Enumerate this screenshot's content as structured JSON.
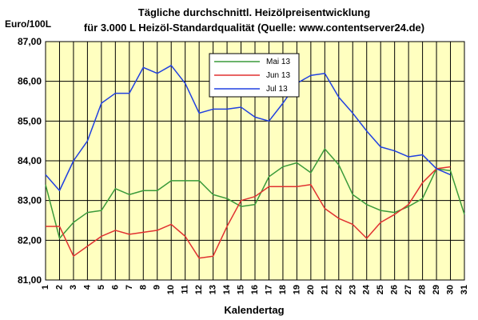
{
  "chart_data": {
    "type": "line",
    "title": "Tägliche durchschnittl. Heizölpreisentwicklung",
    "subtitle": "für 3.000 L Heizöl-Standardqualität (Quelle: www.contentserver24.de)",
    "ylabel": "Euro/100L",
    "xlabel": "Kalendertag",
    "ylim": [
      81,
      87
    ],
    "yticks": [
      "81,00",
      "82,00",
      "83,00",
      "84,00",
      "85,00",
      "86,00",
      "87,00"
    ],
    "x": [
      1,
      2,
      3,
      4,
      5,
      6,
      7,
      8,
      9,
      10,
      11,
      12,
      13,
      14,
      15,
      16,
      17,
      18,
      19,
      20,
      21,
      22,
      23,
      24,
      25,
      26,
      27,
      28,
      29,
      30,
      31
    ],
    "grid": true,
    "legend_position": "top-center",
    "plot_background": "#ffffc0",
    "series": [
      {
        "name": "Mai 13",
        "color": "#3a9a3a",
        "values": [
          83.4,
          82.05,
          82.45,
          82.7,
          82.75,
          83.3,
          83.15,
          83.25,
          83.25,
          83.5,
          83.5,
          83.5,
          83.15,
          83.05,
          82.85,
          82.9,
          83.6,
          83.85,
          83.95,
          83.7,
          84.3,
          83.9,
          83.15,
          82.9,
          82.75,
          82.7,
          82.85,
          83.05,
          83.8,
          83.75,
          82.65
        ]
      },
      {
        "name": "Jun 13",
        "color": "#e03030",
        "values": [
          82.35,
          82.35,
          81.6,
          81.85,
          82.1,
          82.25,
          82.15,
          82.2,
          82.25,
          82.4,
          82.1,
          81.55,
          81.6,
          82.35,
          83.0,
          83.1,
          83.35,
          83.35,
          83.35,
          83.4,
          82.8,
          82.55,
          82.4,
          82.05,
          82.45,
          82.65,
          82.9,
          83.45,
          83.8,
          83.85,
          null
        ]
      },
      {
        "name": "Jul 13",
        "color": "#2040e0",
        "values": [
          83.65,
          83.25,
          84.0,
          84.5,
          85.45,
          85.7,
          85.7,
          86.35,
          86.2,
          86.4,
          85.95,
          85.2,
          85.3,
          85.3,
          85.35,
          85.1,
          85.0,
          85.45,
          85.95,
          86.15,
          86.2,
          85.6,
          85.2,
          84.75,
          84.35,
          84.25,
          84.1,
          84.15,
          83.8,
          83.65,
          null
        ]
      }
    ]
  }
}
